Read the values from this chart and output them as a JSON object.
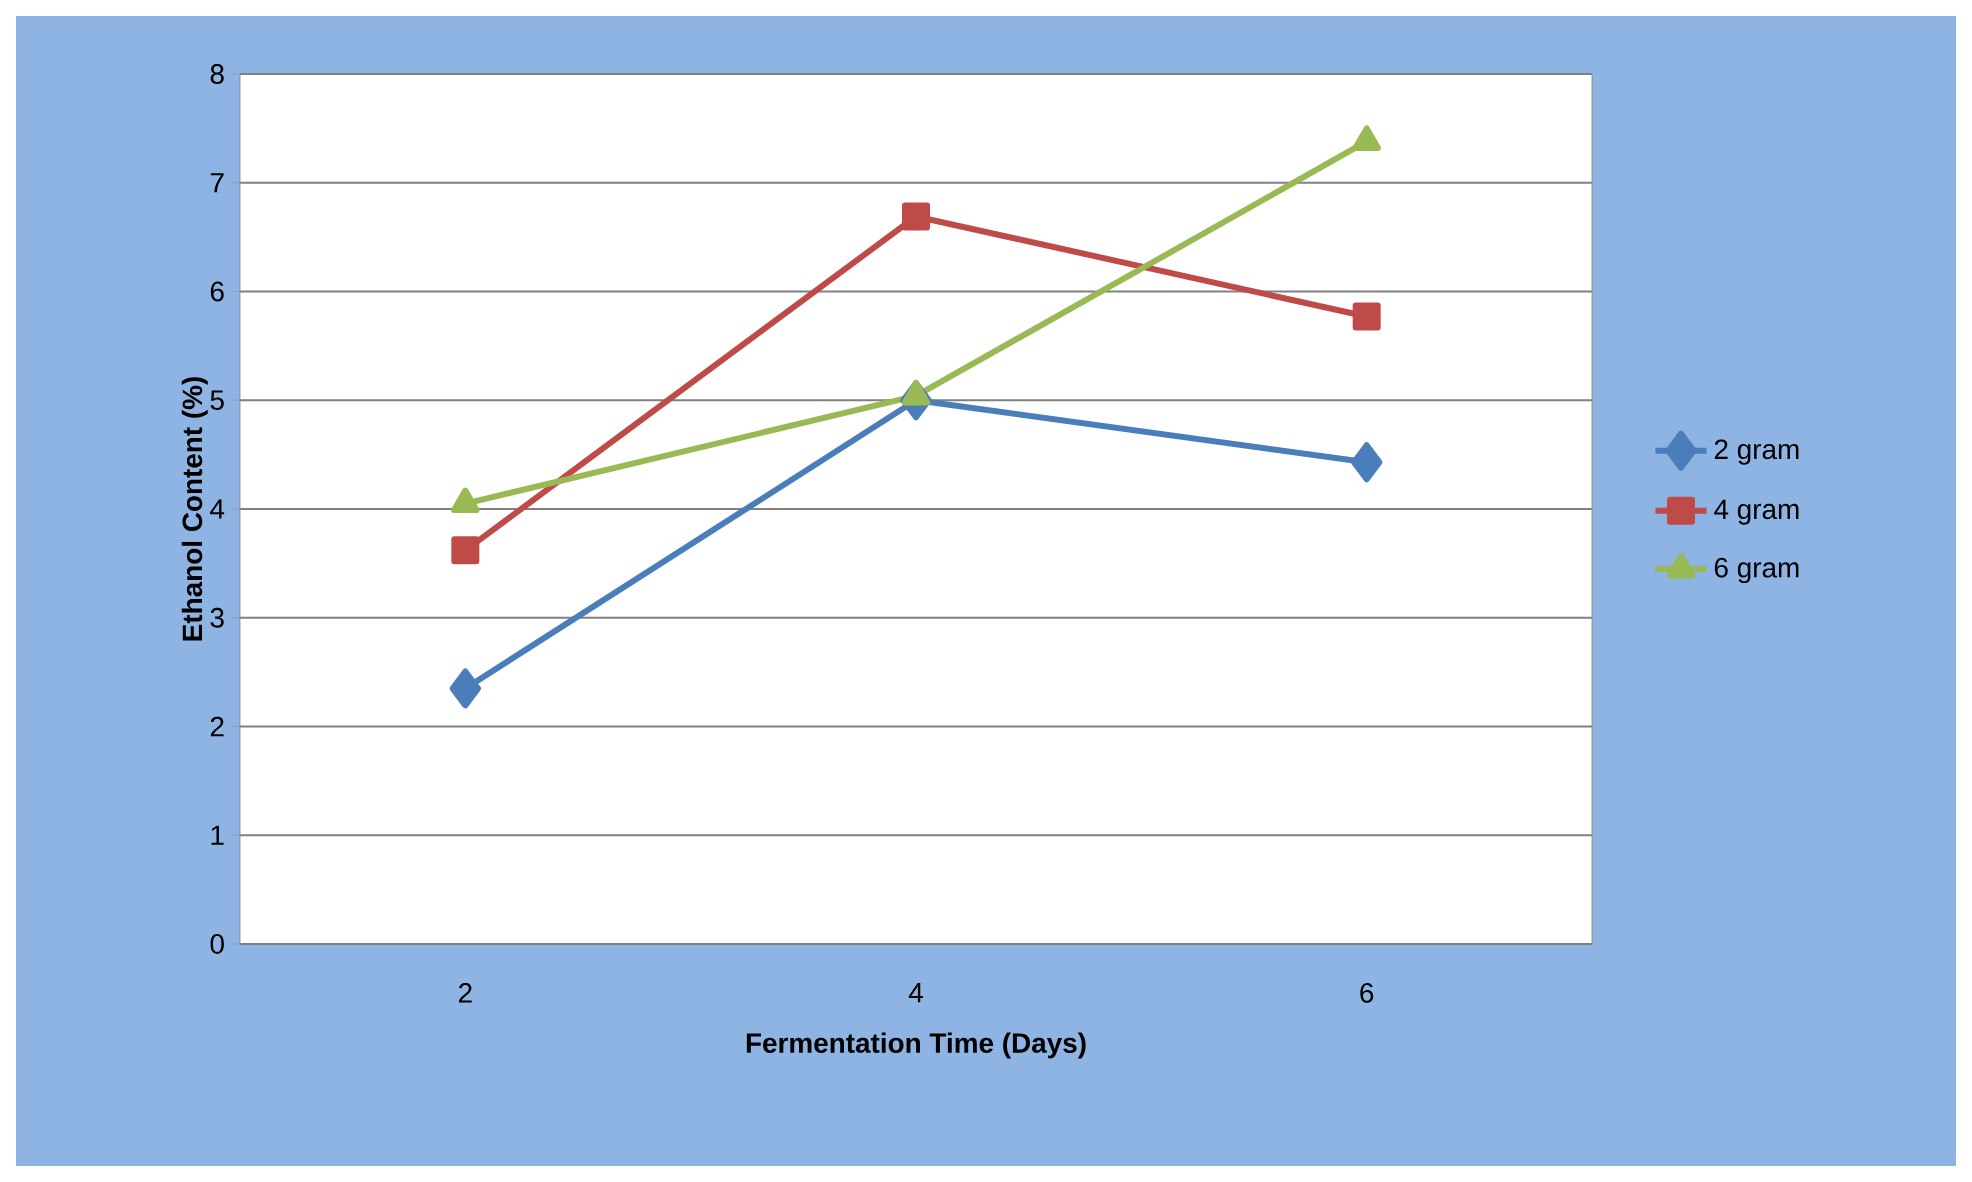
{
  "chart_data": {
    "type": "line",
    "xlabel": "Fermentation Time (Days)",
    "ylabel": "Ethanol Content (%)",
    "categories": [
      "2",
      "4",
      "6"
    ],
    "series": [
      {
        "name": "2 gram",
        "color": "#4a7ebb",
        "marker": "diamond",
        "values": [
          2.35,
          5.0,
          4.43
        ]
      },
      {
        "name": "4 gram",
        "color": "#be4b48",
        "marker": "square",
        "values": [
          3.62,
          6.69,
          5.77
        ]
      },
      {
        "name": "6 gram",
        "color": "#98b954",
        "marker": "triangle",
        "values": [
          4.05,
          5.04,
          7.38
        ]
      }
    ],
    "ylim": [
      0,
      8
    ],
    "yticks": [
      0,
      1,
      2,
      3,
      4,
      5,
      6,
      7,
      8
    ],
    "grid": "y",
    "legend": "right",
    "line_style": "solid"
  }
}
